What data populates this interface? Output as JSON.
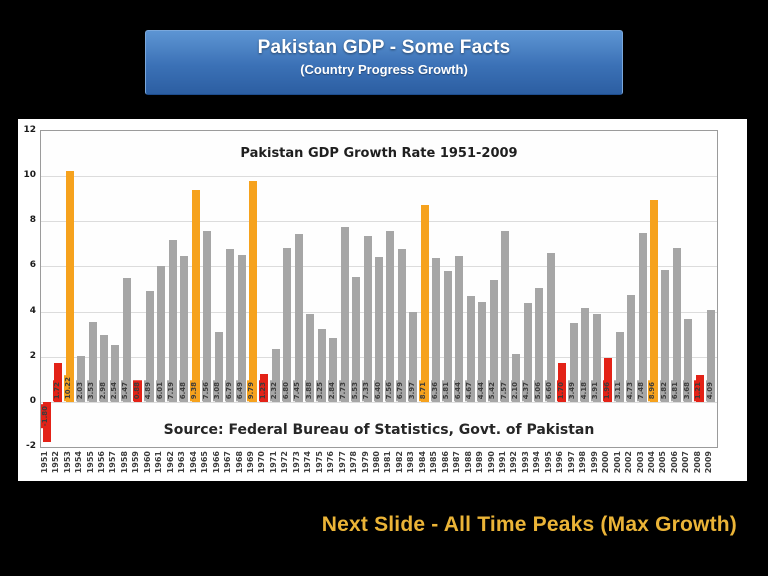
{
  "header": {
    "title": "Pakistan GDP - Some Facts",
    "subtitle": "(Country Progress Growth)"
  },
  "footer": {
    "caption": "Next Slide - All Time Peaks (Max Growth)"
  },
  "chart_data": {
    "type": "bar",
    "title": "Pakistan GDP Growth Rate 1951-2009",
    "source": "Source: Federal Bureau of Statistics, Govt. of Pakistan",
    "ylim": [
      -2,
      12
    ],
    "ytick_step": 2,
    "grid": true,
    "categories": [
      "1951",
      "1952",
      "1953",
      "1954",
      "1955",
      "1956",
      "1957",
      "1958",
      "1959",
      "1960",
      "1961",
      "1962",
      "1963",
      "1964",
      "1965",
      "1966",
      "1967",
      "1968",
      "1969",
      "1970",
      "1971",
      "1972",
      "1973",
      "1974",
      "1975",
      "1976",
      "1977",
      "1978",
      "1979",
      "1980",
      "1981",
      "1982",
      "1983",
      "1984",
      "1985",
      "1986",
      "1987",
      "1988",
      "1989",
      "1990",
      "1991",
      "1992",
      "1993",
      "1994",
      "1995",
      "1996",
      "1997",
      "1998",
      "1999",
      "2000",
      "2001",
      "2002",
      "2003",
      "2004",
      "2005",
      "2006",
      "2007",
      "2008",
      "2009"
    ],
    "values": [
      -1.8,
      1.72,
      10.22,
      2.03,
      3.53,
      2.98,
      2.54,
      5.47,
      0.88,
      4.89,
      6.01,
      7.19,
      6.48,
      9.38,
      7.56,
      3.08,
      6.79,
      6.49,
      9.79,
      1.23,
      2.32,
      6.8,
      7.45,
      3.88,
      3.25,
      2.84,
      7.73,
      5.53,
      7.33,
      6.4,
      7.56,
      6.79,
      3.97,
      8.71,
      6.36,
      5.81,
      6.44,
      4.67,
      4.44,
      5.42,
      7.57,
      2.1,
      4.37,
      5.06,
      6.6,
      1.7,
      3.49,
      4.18,
      3.91,
      1.96,
      3.11,
      4.73,
      7.48,
      8.96,
      5.82,
      6.81,
      3.68,
      1.21,
      4.09
    ],
    "colors": [
      "red",
      "red",
      "orange",
      "gray",
      "gray",
      "gray",
      "gray",
      "gray",
      "red",
      "gray",
      "gray",
      "gray",
      "gray",
      "orange",
      "gray",
      "gray",
      "gray",
      "gray",
      "orange",
      "red",
      "gray",
      "gray",
      "gray",
      "gray",
      "gray",
      "gray",
      "gray",
      "gray",
      "gray",
      "gray",
      "gray",
      "gray",
      "gray",
      "orange",
      "gray",
      "gray",
      "gray",
      "gray",
      "gray",
      "gray",
      "gray",
      "gray",
      "gray",
      "gray",
      "gray",
      "red",
      "gray",
      "gray",
      "gray",
      "red",
      "gray",
      "gray",
      "gray",
      "orange",
      "gray",
      "gray",
      "gray",
      "red",
      "gray"
    ],
    "palette": {
      "gray": "#a6a6a6",
      "orange": "#f6a21d",
      "red": "#e32217"
    },
    "legend": "none"
  }
}
